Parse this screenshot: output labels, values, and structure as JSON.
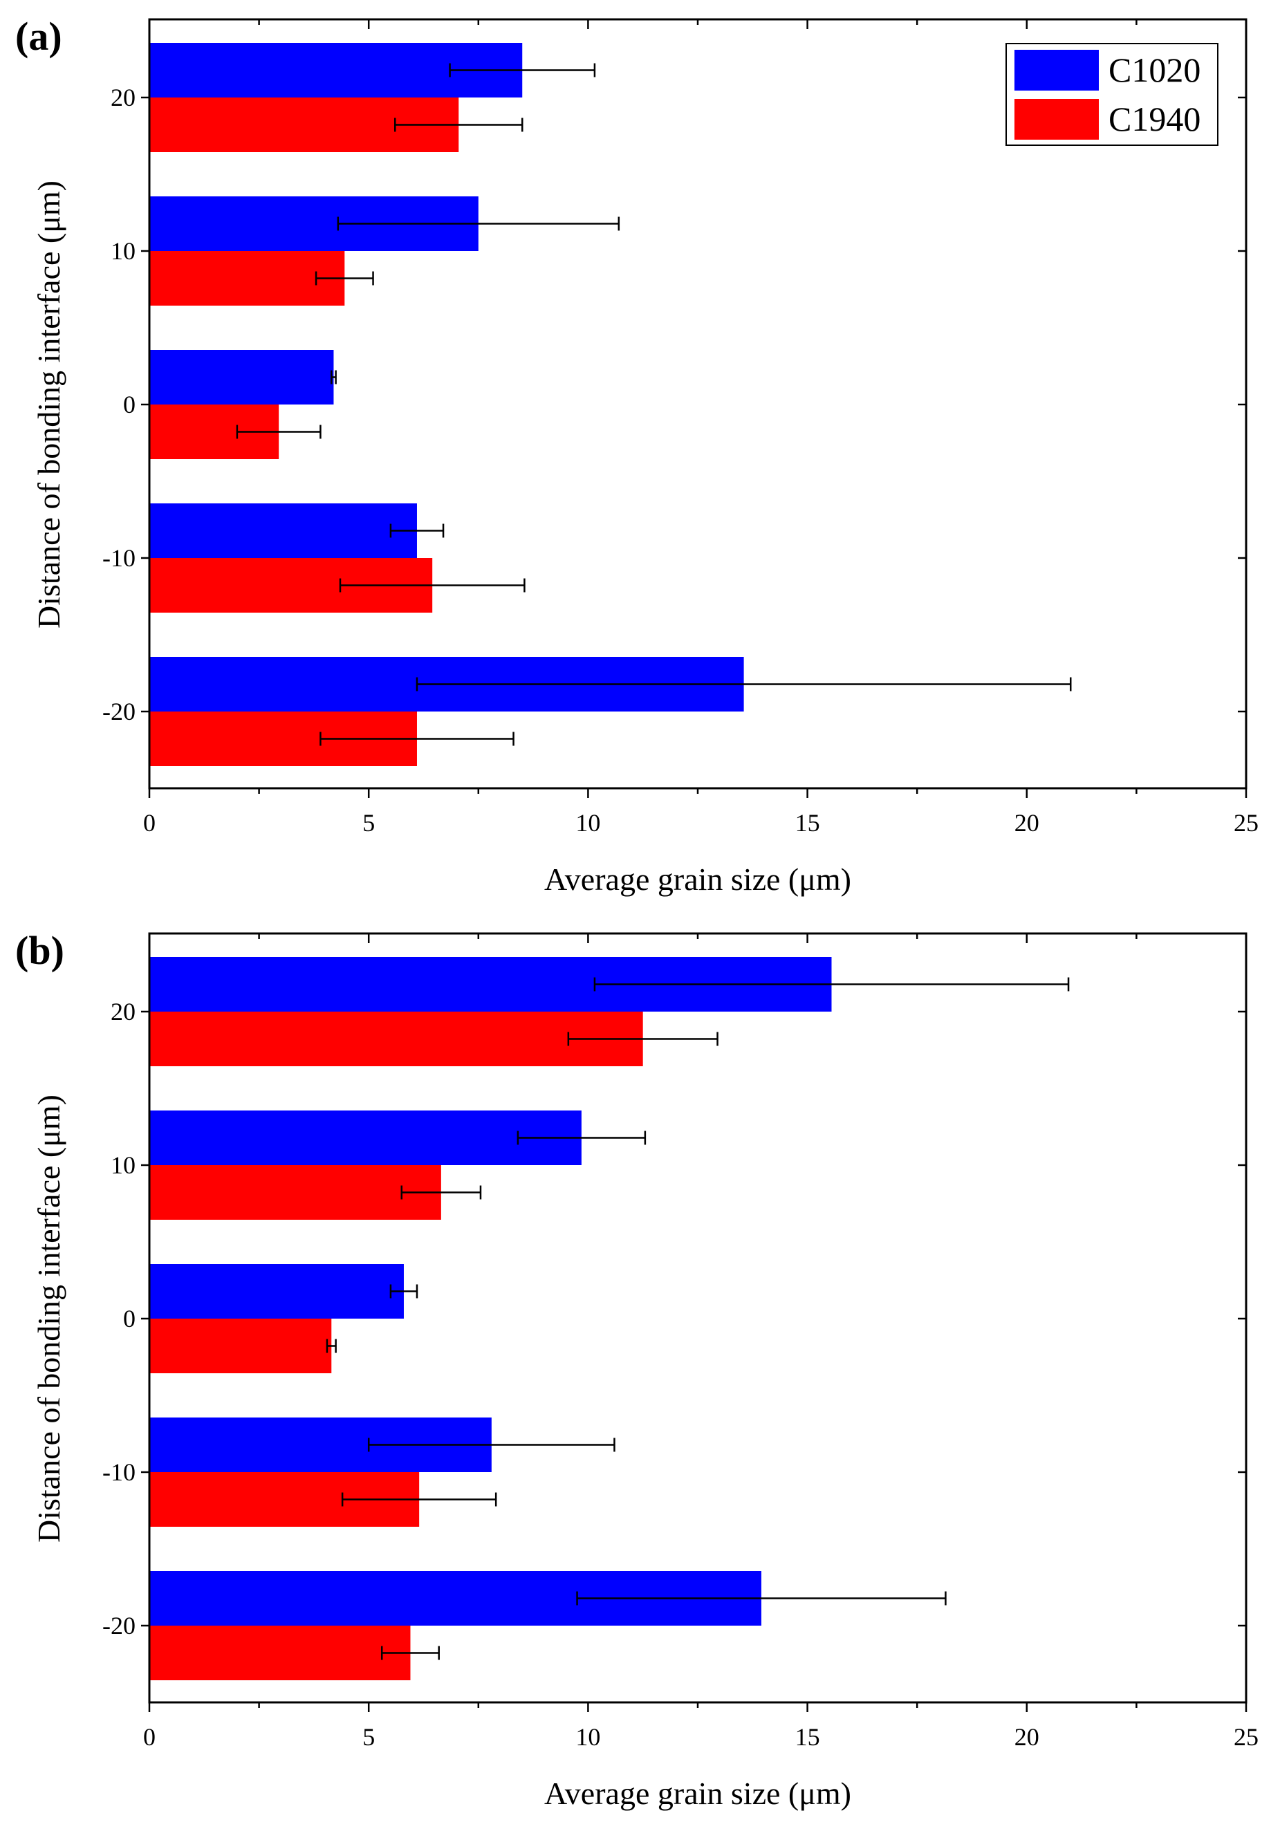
{
  "chart_data": [
    {
      "type": "bar",
      "orientation": "horizontal",
      "panel_label": "(a)",
      "categories": [
        "20",
        "10",
        "0",
        "-10",
        "-20"
      ],
      "series": [
        {
          "name": "C1020",
          "color": "#0000ff",
          "values": [
            8.5,
            7.5,
            4.2,
            6.1,
            13.55
          ],
          "errors": [
            1.65,
            3.2,
            0.05,
            0.6,
            7.45
          ]
        },
        {
          "name": "C1940",
          "color": "#ff0000",
          "values": [
            7.05,
            4.45,
            2.95,
            6.45,
            6.1
          ],
          "errors": [
            1.45,
            0.65,
            0.95,
            2.1,
            2.2
          ]
        }
      ],
      "xlabel": "Average grain size (μm)",
      "ylabel": "Distance of bonding interface (μm)",
      "xlim": [
        0,
        25
      ],
      "xticks": [
        "0",
        "5",
        "10",
        "15",
        "20",
        "25"
      ],
      "legend": {
        "position": "top-right",
        "entries": [
          "C1020",
          "C1940"
        ]
      }
    },
    {
      "type": "bar",
      "orientation": "horizontal",
      "panel_label": "(b)",
      "categories": [
        "20",
        "10",
        "0",
        "-10",
        "-20"
      ],
      "series": [
        {
          "name": "C1020",
          "color": "#0000ff",
          "values": [
            15.55,
            9.85,
            5.8,
            7.8,
            13.95
          ],
          "errors": [
            5.4,
            1.45,
            0.3,
            2.8,
            4.2
          ]
        },
        {
          "name": "C1940",
          "color": "#ff0000",
          "values": [
            11.25,
            6.65,
            4.15,
            6.15,
            5.95
          ],
          "errors": [
            1.7,
            0.9,
            0.1,
            1.75,
            0.65
          ]
        }
      ],
      "xlabel": "Average grain size (μm)",
      "ylabel": "Distance of bonding interface (μm)",
      "xlim": [
        0,
        25
      ],
      "xticks": [
        "0",
        "5",
        "10",
        "15",
        "20",
        "25"
      ]
    }
  ]
}
